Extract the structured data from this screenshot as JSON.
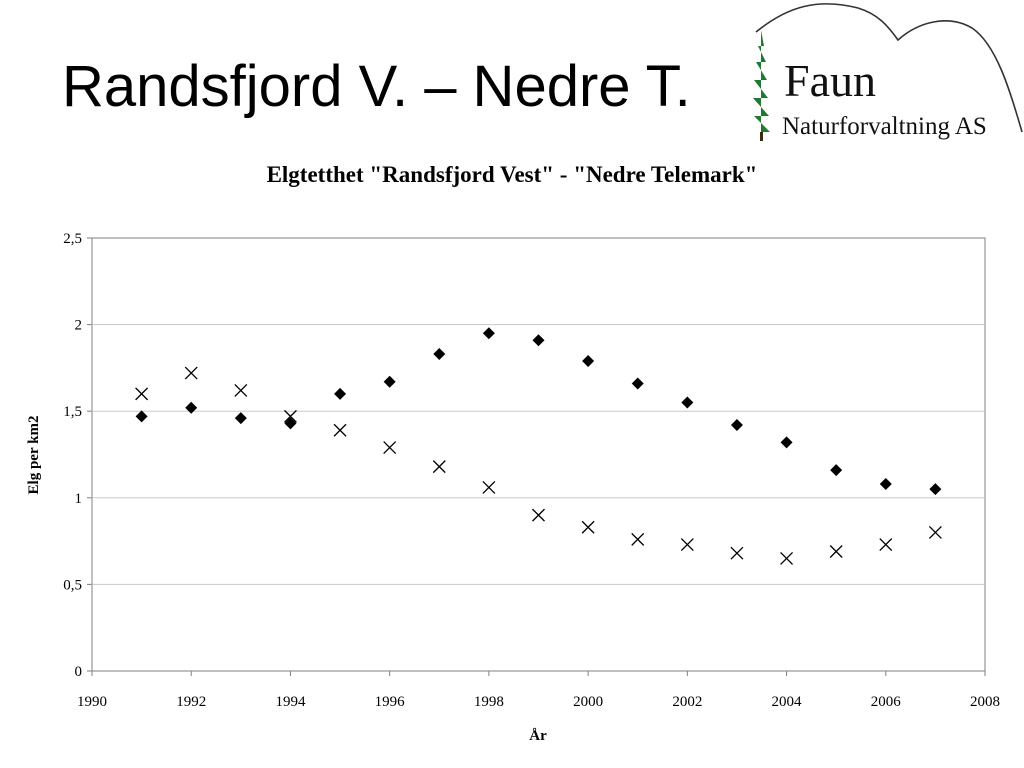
{
  "slide": {
    "title": "Randsfjord V. – Nedre T."
  },
  "logo": {
    "name": "Faun",
    "subtitle": "Naturforvaltning AS",
    "tree_color": "#1e7a32"
  },
  "chart_data": {
    "type": "scatter",
    "title": "Elgtetthet \"Randsfjord Vest\" - \"Nedre Telemark\"",
    "xlabel": "År",
    "ylabel": "Elg per km2",
    "xlim": [
      1990,
      2008
    ],
    "ylim": [
      0,
      2.5
    ],
    "x_ticks": [
      "1990",
      "1992",
      "1994",
      "1996",
      "1998",
      "2000",
      "2002",
      "2004",
      "2006",
      "2008"
    ],
    "y_ticks": [
      "0",
      "0,5",
      "1",
      "1,5",
      "2",
      "2,5"
    ],
    "grid": "horizontal",
    "legend": "none",
    "series": [
      {
        "marker": "diamond",
        "color": "#000000",
        "x": [
          1991,
          1992,
          1993,
          1994,
          1995,
          1996,
          1997,
          1998,
          1999,
          2000,
          2001,
          2002,
          2003,
          2004,
          2005,
          2006,
          2007
        ],
        "values": [
          1.47,
          1.52,
          1.46,
          1.43,
          1.6,
          1.67,
          1.83,
          1.95,
          1.91,
          1.79,
          1.66,
          1.55,
          1.42,
          1.32,
          1.16,
          1.08,
          1.05
        ]
      },
      {
        "marker": "x",
        "color": "#000000",
        "x": [
          1991,
          1992,
          1993,
          1994,
          1995,
          1996,
          1997,
          1998,
          1999,
          2000,
          2001,
          2002,
          2003,
          2004,
          2005,
          2006,
          2007
        ],
        "values": [
          1.6,
          1.72,
          1.62,
          1.47,
          1.39,
          1.29,
          1.18,
          1.06,
          0.9,
          0.83,
          0.76,
          0.73,
          0.68,
          0.65,
          0.69,
          0.73,
          0.8
        ]
      }
    ]
  }
}
